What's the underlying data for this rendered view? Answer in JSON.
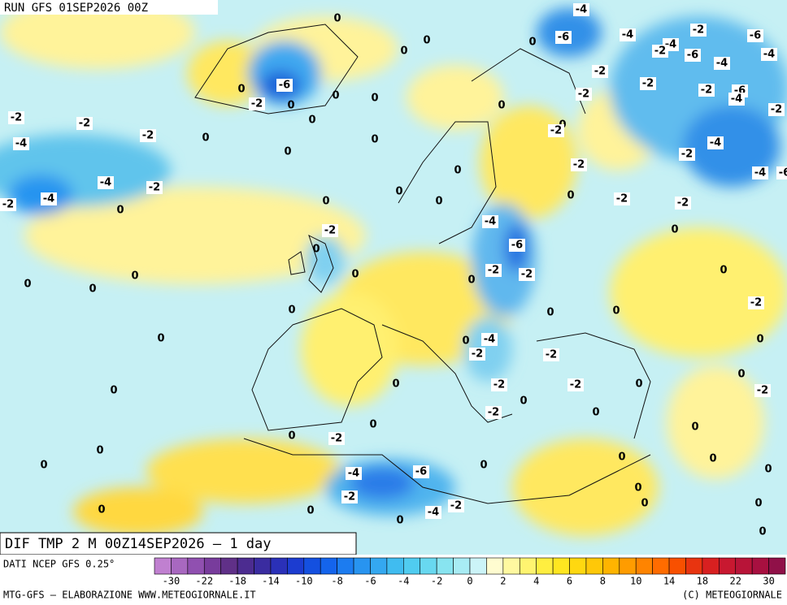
{
  "header": {
    "run": "RUN GFS 01SEP2026 00Z"
  },
  "map": {
    "title": "DIF TMP 2 M 00Z14SEP2026 — 1 day",
    "contour_labels": [
      -2,
      -2,
      -4,
      -2,
      0,
      -4,
      -2,
      -4,
      -2,
      0,
      -2,
      -6,
      0,
      0,
      0,
      0,
      0,
      0,
      0,
      0,
      0,
      0,
      0,
      -2,
      0,
      0,
      0,
      0,
      0,
      0,
      0,
      0,
      0,
      0,
      0,
      0,
      0,
      -2,
      -4,
      -6,
      -2,
      -4,
      -2,
      0,
      0,
      0,
      0,
      -4,
      -6,
      -2,
      -2,
      0,
      -4,
      -2,
      0,
      -2,
      -2,
      -2,
      0,
      -2,
      0,
      0,
      0,
      0,
      0,
      0,
      -2,
      0,
      0,
      -2,
      0,
      0,
      0,
      0,
      0,
      0,
      0,
      0,
      0,
      -2,
      -2,
      -2,
      -2,
      -4,
      -4,
      -6,
      -2,
      -6,
      -4,
      -2,
      -2,
      -2,
      -2,
      -4,
      -4,
      -2,
      -6,
      -2,
      -6,
      -4,
      -4,
      -6,
      -4,
      0,
      0,
      0,
      -2,
      0,
      0,
      0
    ]
  },
  "legend": {
    "source": "DATI NCEP GFS 0.25°",
    "ticks": [
      -30,
      -22,
      -18,
      -14,
      -10,
      -8,
      -6,
      -4,
      -2,
      0,
      2,
      4,
      6,
      8,
      10,
      14,
      18,
      22,
      30
    ],
    "colors": [
      "#c080d0",
      "#a868c0",
      "#9050b0",
      "#783c9c",
      "#603088",
      "#4c2c90",
      "#3a2ca0",
      "#2a30b8",
      "#1c3cd0",
      "#1450e0",
      "#1464ec",
      "#1c7cf0",
      "#2894f0",
      "#34a8f0",
      "#40bcf0",
      "#50ccf0",
      "#68d8f0",
      "#88e4f0",
      "#a8ecf4",
      "#ccf4f8",
      "#fffcd0",
      "#fff8a0",
      "#fff470",
      "#ffee40",
      "#ffe620",
      "#ffd810",
      "#ffc808",
      "#ffb400",
      "#ff9c00",
      "#ff8400",
      "#ff6c00",
      "#f85000",
      "#e83410",
      "#d82020",
      "#c81830",
      "#b81438",
      "#a81040",
      "#901048"
    ]
  },
  "footer": {
    "left": "MTG-GFS — ELABORAZIONE WWW.METEOGIORNALE.IT",
    "right": "(C) METEOGIORNALE"
  }
}
